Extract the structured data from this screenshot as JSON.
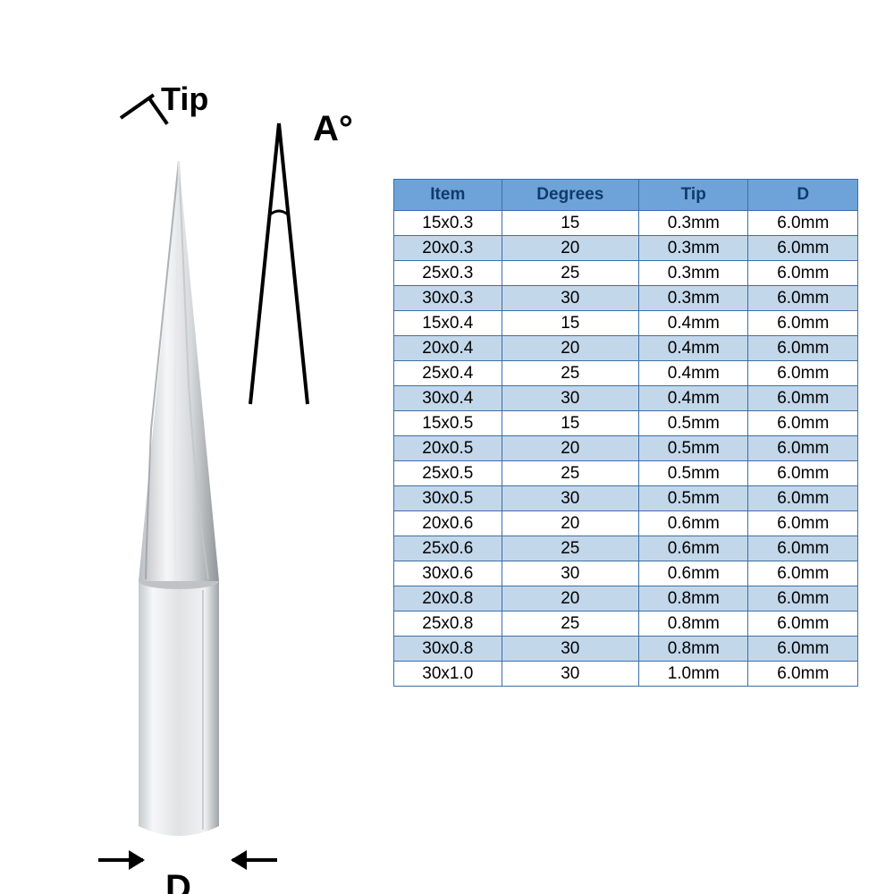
{
  "labels": {
    "tip": "Tip",
    "angle": "A°",
    "diameter": "D"
  },
  "colors": {
    "border": "#3b6fa8",
    "header_bg": "#6ea3d9",
    "header_text": "#113a6b",
    "row_alt_bg": "#c3d7ea",
    "row_bg": "#ffffff",
    "row_text": "#000000",
    "tool_light": "#f2f3f4",
    "tool_mid": "#d4d7da",
    "tool_dark": "#a8adb1",
    "tool_edge": "#8d9296"
  },
  "table": {
    "columns": [
      "Item",
      "Degrees",
      "Tip",
      "D"
    ],
    "rows": [
      [
        "15x0.3",
        "15",
        "0.3mm",
        "6.0mm"
      ],
      [
        "20x0.3",
        "20",
        "0.3mm",
        "6.0mm"
      ],
      [
        "25x0.3",
        "25",
        "0.3mm",
        "6.0mm"
      ],
      [
        "30x0.3",
        "30",
        "0.3mm",
        "6.0mm"
      ],
      [
        "15x0.4",
        "15",
        "0.4mm",
        "6.0mm"
      ],
      [
        "20x0.4",
        "20",
        "0.4mm",
        "6.0mm"
      ],
      [
        "25x0.4",
        "25",
        "0.4mm",
        "6.0mm"
      ],
      [
        "30x0.4",
        "30",
        "0.4mm",
        "6.0mm"
      ],
      [
        "15x0.5",
        "15",
        "0.5mm",
        "6.0mm"
      ],
      [
        "20x0.5",
        "20",
        "0.5mm",
        "6.0mm"
      ],
      [
        "25x0.5",
        "25",
        "0.5mm",
        "6.0mm"
      ],
      [
        "30x0.5",
        "30",
        "0.5mm",
        "6.0mm"
      ],
      [
        "20x0.6",
        "20",
        "0.6mm",
        "6.0mm"
      ],
      [
        "25x0.6",
        "25",
        "0.6mm",
        "6.0mm"
      ],
      [
        "30x0.6",
        "30",
        "0.6mm",
        "6.0mm"
      ],
      [
        "20x0.8",
        "20",
        "0.8mm",
        "6.0mm"
      ],
      [
        "25x0.8",
        "25",
        "0.8mm",
        "6.0mm"
      ],
      [
        "30x0.8",
        "30",
        "0.8mm",
        "6.0mm"
      ],
      [
        "30x1.0",
        "30",
        "1.0mm",
        "6.0mm"
      ]
    ]
  }
}
